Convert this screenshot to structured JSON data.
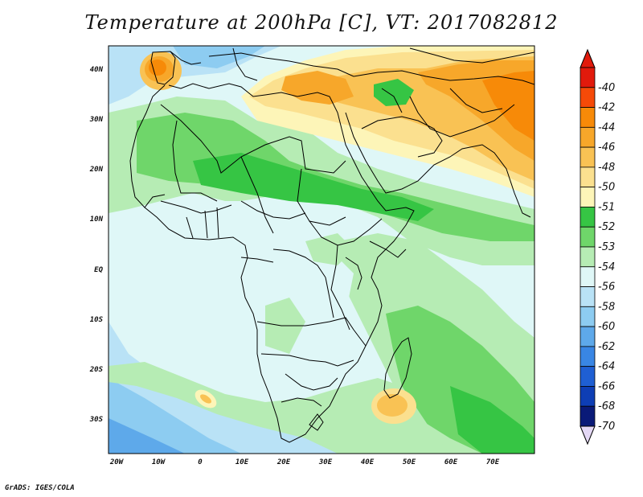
{
  "title": "Temperature at 200hPa [C], VT: 2017082812",
  "credit": "GrADS: IGES/COLA",
  "map": {
    "lat_labels": [
      "40N",
      "30N",
      "20N",
      "10N",
      "EQ",
      "10S",
      "20S",
      "30S"
    ],
    "lon_labels": [
      "20W",
      "10W",
      "0",
      "10E",
      "20E",
      "30E",
      "40E",
      "50E",
      "60E",
      "70E"
    ]
  },
  "colorbar": {
    "levels": [
      {
        "label": "-40",
        "color": "#e11a0c"
      },
      {
        "label": "-42",
        "color": "#f54a08"
      },
      {
        "label": "-44",
        "color": "#f78a08"
      },
      {
        "label": "-46",
        "color": "#f7a72a"
      },
      {
        "label": "-48",
        "color": "#f9c254"
      },
      {
        "label": "-50",
        "color": "#fbe08f"
      },
      {
        "label": "-51",
        "color": "#fdf5b8"
      },
      {
        "label": "-52",
        "color": "#36c544"
      },
      {
        "label": "-53",
        "color": "#6fd66a"
      },
      {
        "label": "-54",
        "color": "#b6ecb4"
      },
      {
        "label": "-56",
        "color": "#dff7f7"
      },
      {
        "label": "-58",
        "color": "#b9e2f6"
      },
      {
        "label": "-60",
        "color": "#8dccf1"
      },
      {
        "label": "-62",
        "color": "#5ea9ea"
      },
      {
        "label": "-64",
        "color": "#3986e4"
      },
      {
        "label": "-66",
        "color": "#1f5fd3"
      },
      {
        "label": "-68",
        "color": "#0e3eb5"
      },
      {
        "label": "-70",
        "color": "#0a1a78"
      }
    ],
    "below_color": "#e4d8f5"
  }
}
